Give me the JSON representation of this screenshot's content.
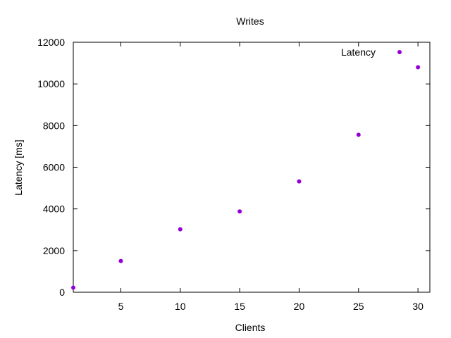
{
  "chart_data": {
    "type": "scatter",
    "title": "Writes",
    "xlabel": "Clients",
    "ylabel": "Latency [ms]",
    "xlim": [
      1,
      31
    ],
    "ylim": [
      0,
      12000
    ],
    "xticks": [
      5,
      10,
      15,
      20,
      25,
      30
    ],
    "yticks": [
      0,
      2000,
      4000,
      6000,
      8000,
      10000,
      12000
    ],
    "grid": false,
    "legend_position": "top-right",
    "series": [
      {
        "name": "Latency",
        "color": "#9400d3",
        "marker": "filled-circle",
        "points": [
          {
            "x": 1,
            "y": 220
          },
          {
            "x": 5,
            "y": 1500
          },
          {
            "x": 10,
            "y": 3020
          },
          {
            "x": 15,
            "y": 3880
          },
          {
            "x": 20,
            "y": 5320
          },
          {
            "x": 25,
            "y": 7560
          },
          {
            "x": 30,
            "y": 10800
          }
        ]
      }
    ]
  }
}
